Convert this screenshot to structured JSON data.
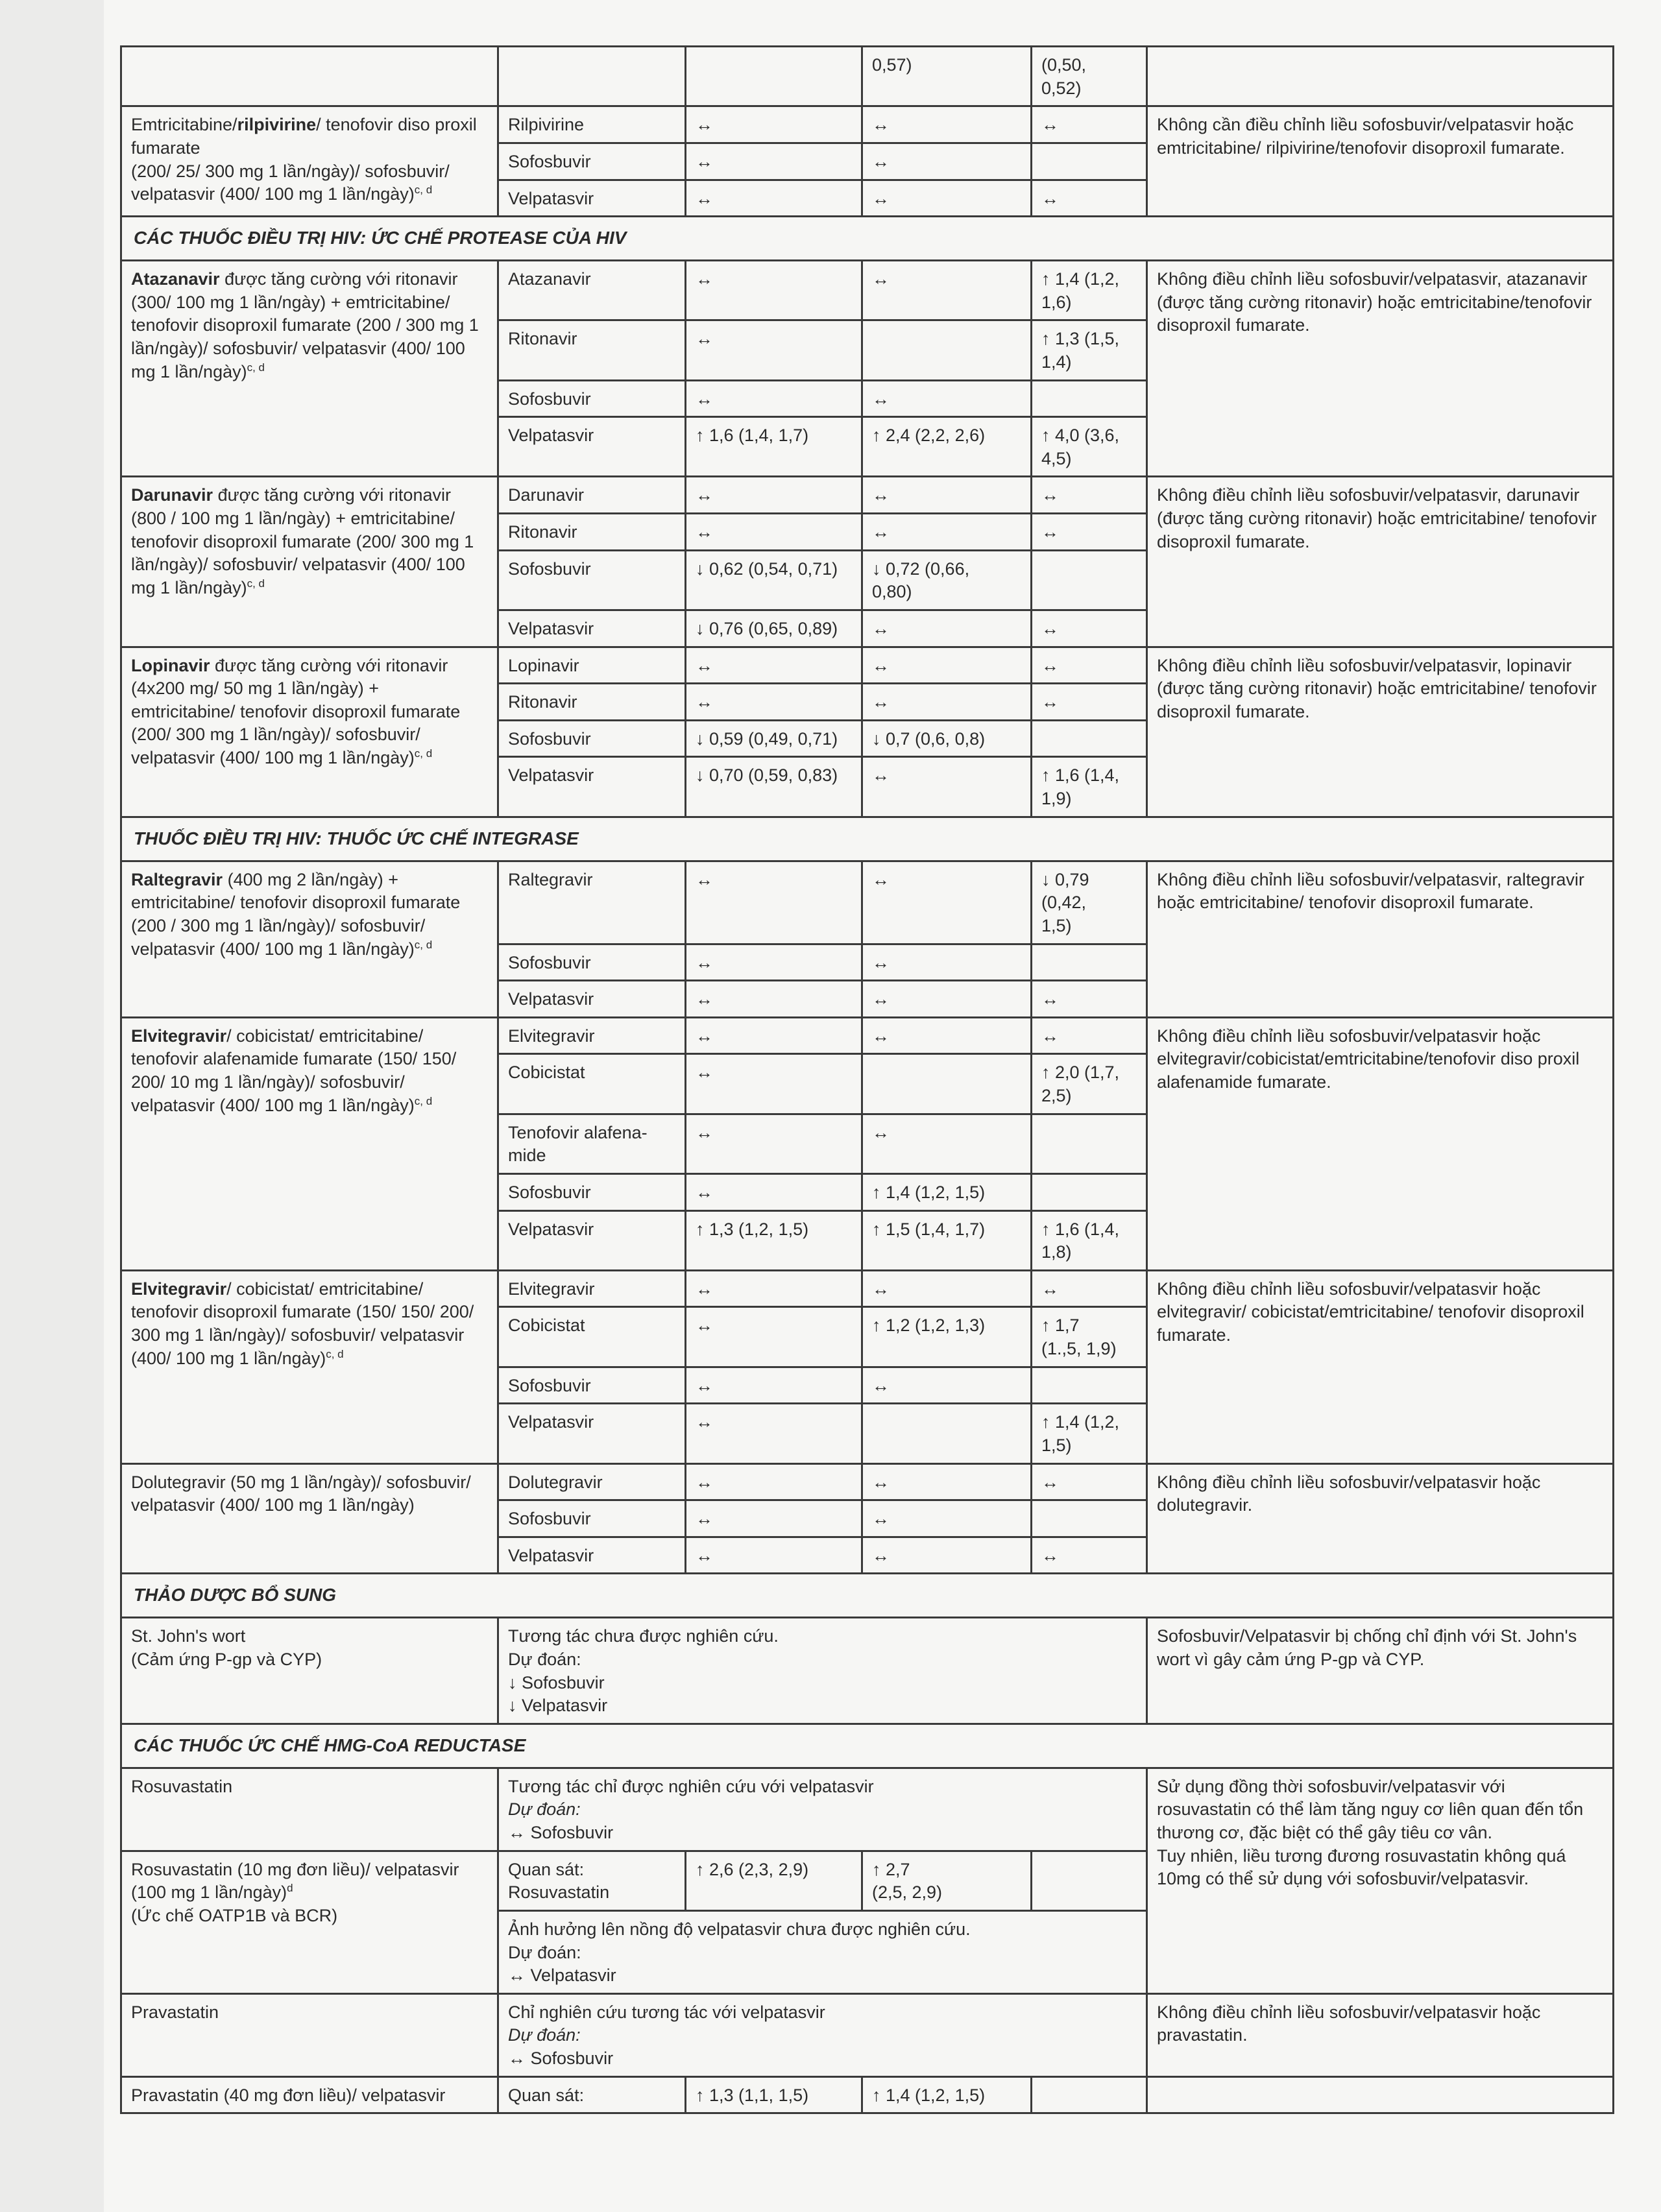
{
  "table": {
    "top_partial": {
      "c2": "0,57)",
      "c3": "(0,50,\n0,52)"
    },
    "items": [
      {
        "kind": "interaction",
        "regimen": {
          "pre": "Emtricitabine/",
          "bold": "rilpivirine",
          "post": "/ tenofovir diso proxil fumarate\n(200/ 25/ 300 mg 1 lần/ngày)/ sofosbuvir/ velpatasvir (400/ 100 mg 1 lần/ngày)",
          "sup": "c, d"
        },
        "rows": [
          {
            "drug": "Rilpivirine",
            "c1": "↔",
            "c2": "↔",
            "c3": "↔"
          },
          {
            "drug": "Sofosbuvir",
            "c1": "↔",
            "c2": "↔",
            "c3": ""
          },
          {
            "drug": "Velpatasvir",
            "c1": "↔",
            "c2": "↔",
            "c3": "↔"
          }
        ],
        "recommendation": "Không cần điều chỉnh liều sofosbuvir/velpatasvir hoặc emtricitabine/ rilpivirine/tenofovir disoproxil fumarate."
      },
      {
        "kind": "section",
        "title": "CÁC THUỐC ĐIỀU TRỊ HIV: ỨC CHẾ PROTEASE CỦA HIV"
      },
      {
        "kind": "interaction",
        "regimen": {
          "pre": "",
          "bold": "Atazanavir",
          "post": " được tăng cường với ritonavir (300/ 100 mg 1 lần/ngày) + emtricitabine/ tenofovir disoproxil fumarate (200 / 300 mg 1 lần/ngày)/ sofosbuvir/ velpatasvir (400/ 100 mg 1 lần/ngày)",
          "sup": "c, d"
        },
        "rows": [
          {
            "drug": "Atazanavir",
            "c1": "↔",
            "c2": "↔",
            "c3": "↑ 1,4 (1,2,\n1,6)"
          },
          {
            "drug": "Ritonavir",
            "c1": "↔",
            "c2": "",
            "c3": "↑ 1,3 (1,5,\n1,4)"
          },
          {
            "drug": "Sofosbuvir",
            "c1": "↔",
            "c2": "↔",
            "c3": ""
          },
          {
            "drug": "Velpatasvir",
            "c1": "↑ 1,6 (1,4, 1,7)",
            "c2": "↑ 2,4 (2,2, 2,6)",
            "c3": "↑ 4,0 (3,6,\n4,5)"
          }
        ],
        "recommendation": "Không điều chỉnh liều sofosbuvir/velpatasvir, atazanavir (được tăng cường ritonavir) hoặc emtricitabine/tenofovir disoproxil fumarate."
      },
      {
        "kind": "interaction",
        "regimen": {
          "pre": "",
          "bold": "Darunavir",
          "post": " được tăng cường với ritonavir (800 / 100 mg 1 lần/ngày) + emtricitabine/ tenofovir disoproxil fumarate (200/ 300 mg 1 lần/ngày)/ sofosbuvir/ velpatasvir (400/ 100 mg 1 lần/ngày)",
          "sup": "c, d"
        },
        "rows": [
          {
            "drug": "Darunavir",
            "c1": "↔",
            "c2": "↔",
            "c3": "↔"
          },
          {
            "drug": "Ritonavir",
            "c1": "↔",
            "c2": "↔",
            "c3": "↔"
          },
          {
            "drug": "Sofosbuvir",
            "c1": "↓ 0,62 (0,54, 0,71)",
            "c2": "↓ 0,72 (0,66,\n0,80)",
            "c3": ""
          },
          {
            "drug": "Velpatasvir",
            "c1": "↓ 0,76 (0,65, 0,89)",
            "c2": "↔",
            "c3": "↔"
          }
        ],
        "recommendation": "Không điều chỉnh liều sofosbuvir/velpatasvir, darunavir (được tăng cường ritonavir) hoặc emtricitabine/ tenofovir disoproxil fumarate."
      },
      {
        "kind": "interaction",
        "regimen": {
          "pre": "",
          "bold": "Lopinavir",
          "post": " được tăng cường với ritonavir (4x200 mg/ 50 mg 1 lần/ngày) + emtricitabine/ tenofovir disoproxil fumarate (200/ 300 mg 1 lần/ngày)/ sofosbuvir/ velpatasvir (400/ 100 mg 1 lần/ngày)",
          "sup": "c, d"
        },
        "rows": [
          {
            "drug": "Lopinavir",
            "c1": "↔",
            "c2": "↔",
            "c3": "↔"
          },
          {
            "drug": "Ritonavir",
            "c1": "↔",
            "c2": "↔",
            "c3": "↔"
          },
          {
            "drug": "Sofosbuvir",
            "c1": "↓ 0,59 (0,49, 0,71)",
            "c2": "↓ 0,7 (0,6, 0,8)",
            "c3": ""
          },
          {
            "drug": "Velpatasvir",
            "c1": "↓ 0,70 (0,59, 0,83)",
            "c2": "↔",
            "c3": "↑ 1,6 (1,4,\n1,9)"
          }
        ],
        "recommendation": "Không điều chỉnh liều sofosbuvir/velpatasvir, lopinavir (được tăng cường ritonavir) hoặc emtricitabine/ tenofovir disoproxil fumarate."
      },
      {
        "kind": "section",
        "title": "THUỐC ĐIỀU TRỊ HIV: THUỐC ỨC CHẾ INTEGRASE"
      },
      {
        "kind": "interaction",
        "regimen": {
          "pre": "",
          "bold": "Raltegravir",
          "post": " (400 mg 2 lần/ngày) + emtricitabine/ tenofovir disoproxil fumarate (200 / 300 mg 1 lần/ngày)/ sofosbuvir/ velpatasvir (400/ 100 mg 1 lần/ngày)",
          "sup": "c, d"
        },
        "rows": [
          {
            "drug": "Raltegravir",
            "c1": "↔",
            "c2": "↔",
            "c3": "↓ 0,79\n(0,42,\n1,5)"
          },
          {
            "drug": "Sofosbuvir",
            "c1": "↔",
            "c2": "↔",
            "c3": ""
          },
          {
            "drug": "Velpatasvir",
            "c1": "↔",
            "c2": "↔",
            "c3": "↔"
          }
        ],
        "recommendation": "Không điều chỉnh liều sofosbuvir/velpatasvir, raltegravir hoặc emtricitabine/ tenofovir disoproxil fumarate."
      },
      {
        "kind": "interaction",
        "regimen": {
          "pre": "",
          "bold": "Elvitegravir",
          "post": "/ cobicistat/ emtricitabine/ tenofovir alafenamide fumarate (150/ 150/ 200/ 10 mg 1 lần/ngày)/ sofosbuvir/ velpatasvir (400/ 100 mg 1 lần/ngày)",
          "sup": "c, d"
        },
        "rows": [
          {
            "drug": "Elvitegravir",
            "c1": "↔",
            "c2": "↔",
            "c3": "↔"
          },
          {
            "drug": "Cobicistat",
            "c1": "↔",
            "c2": "",
            "c3": "↑ 2,0 (1,7,\n2,5)"
          },
          {
            "drug": "Tenofovir alafena-\nmide",
            "c1": "↔",
            "c2": "↔",
            "c3": ""
          },
          {
            "drug": "Sofosbuvir",
            "c1": "↔",
            "c2": "↑ 1,4 (1,2, 1,5)",
            "c3": ""
          },
          {
            "drug": "Velpatasvir",
            "c1": "↑ 1,3 (1,2, 1,5)",
            "c2": "↑ 1,5 (1,4, 1,7)",
            "c3": "↑ 1,6 (1,4,\n1,8)"
          }
        ],
        "recommendation": "Không điều chỉnh liều sofosbuvir/velpatasvir hoặc elvitegravir/cobicistat/emtricitabine/tenofovir diso proxil alafenamide fumarate."
      },
      {
        "kind": "interaction",
        "regimen": {
          "pre": "",
          "bold": "Elvitegravir",
          "post": "/ cobicistat/ emtricitabine/ tenofovir disoproxil fumarate (150/ 150/ 200/ 300 mg 1 lần/ngày)/ sofosbuvir/ velpatasvir (400/ 100 mg 1 lần/ngày)",
          "sup": "c, d"
        },
        "rows": [
          {
            "drug": "Elvitegravir",
            "c1": "↔",
            "c2": "↔",
            "c3": "↔"
          },
          {
            "drug": "Cobicistat",
            "c1": "↔",
            "c2": "↑ 1,2 (1,2, 1,3)",
            "c3": "↑ 1,7\n(1.,5, 1,9)"
          },
          {
            "drug": "Sofosbuvir",
            "c1": "↔",
            "c2": "↔",
            "c3": ""
          },
          {
            "drug": "Velpatasvir",
            "c1": "↔",
            "c2": "",
            "c3": "↑ 1,4 (1,2,\n1,5)"
          }
        ],
        "recommendation": "Không điều chỉnh liều sofosbuvir/velpatasvir hoặc elvitegravir/ cobicistat/emtricitabine/ tenofovir disoproxil fumarate."
      },
      {
        "kind": "interaction",
        "regimen": {
          "pre": "Dolutegravir (50 mg 1 lần/ngày)/ sofosbuvir/ velpatasvir (400/ 100 mg 1 lần/ngày)",
          "bold": "",
          "post": "",
          "sup": ""
        },
        "rows": [
          {
            "drug": "Dolutegravir",
            "c1": "↔",
            "c2": "↔",
            "c3": "↔"
          },
          {
            "drug": "Sofosbuvir",
            "c1": "↔",
            "c2": "↔",
            "c3": ""
          },
          {
            "drug": "Velpatasvir",
            "c1": "↔",
            "c2": "↔",
            "c3": "↔"
          }
        ],
        "recommendation": "Không điều chỉnh liều sofosbuvir/velpatasvir hoặc dolutegravir."
      },
      {
        "kind": "section",
        "title": "THẢO DƯỢC BỔ SUNG"
      },
      {
        "kind": "text",
        "regimen": "St. John's wort\n(Cảm ứng P-gp và CYP)",
        "lead": "Tương tác chưa được nghiên cứu.",
        "predict": "Dự đoán:",
        "effect": "↓ Sofosbuvir\n↓ Velpatasvir",
        "recommendation": "Sofosbuvir/Velpatasvir bị chống chỉ định với St. John's wort vì gây cảm ứng P-gp và CYP.",
        "rec_rows": 1
      },
      {
        "kind": "section",
        "title": "CÁC THUỐC ỨC CHẾ HMG-CoA REDUCTASE"
      },
      {
        "kind": "text",
        "regimen": "Rosuvastatin",
        "lead": "Tương tác chỉ được nghiên cứu với velpatasvir",
        "predict": "Dự đoán:",
        "effect": "↔ Sofosbuvir",
        "recommendation": "Sử dụng đồng thời sofosbuvir/velpatasvir với rosuvastatin có thể làm tăng nguy cơ liên quan đến tổn thương cơ, đặc biệt có thể gây tiêu cơ vân.\nTuy nhiên, liều tương đương rosuvastatin không quá 10mg có thể sử dụng với sofosbuvir/velpatasvir.",
        "rec_rows": 3
      },
      {
        "kind": "observed",
        "regimen": "Rosuvastatin (10 mg đơn liều)/ velpatasvir (100 mg 1 lần/ngày)",
        "sup": "d",
        "regimen_note": "(Ức chế OATP1B và BCR)",
        "label": "Quan sát:\nRosuvastatin",
        "c1": "↑ 2,6 (2,3, 2,9)",
        "c2": "↑ 2,7\n(2,5, 2,9)",
        "c3": "",
        "note": {
          "lead": "Ảnh hưởng lên nồng độ velpatasvir chưa được nghiên cứu.",
          "predict": "Dự đoán:",
          "effect": "↔ Velpatasvir"
        },
        "has_rec": false
      },
      {
        "kind": "text",
        "regimen": "Pravastatin",
        "lead": "Chỉ nghiên cứu tương tác với velpatasvir",
        "predict": "Dự đoán:",
        "effect": "↔ Sofosbuvir",
        "recommendation": "Không điều chỉnh liều sofosbuvir/velpatasvir hoặc pravastatin.",
        "rec_rows": 1
      },
      {
        "kind": "observed",
        "regimen": "Pravastatin (40 mg đơn liều)/ velpatasvir",
        "sup": "",
        "regimen_note": "",
        "label": "Quan sát:",
        "c1": "↑ 1,3 (1,1, 1,5)",
        "c2": "↑ 1,4 (1,2, 1,5)",
        "c3": "",
        "has_rec": true,
        "recommendation": ""
      }
    ]
  }
}
